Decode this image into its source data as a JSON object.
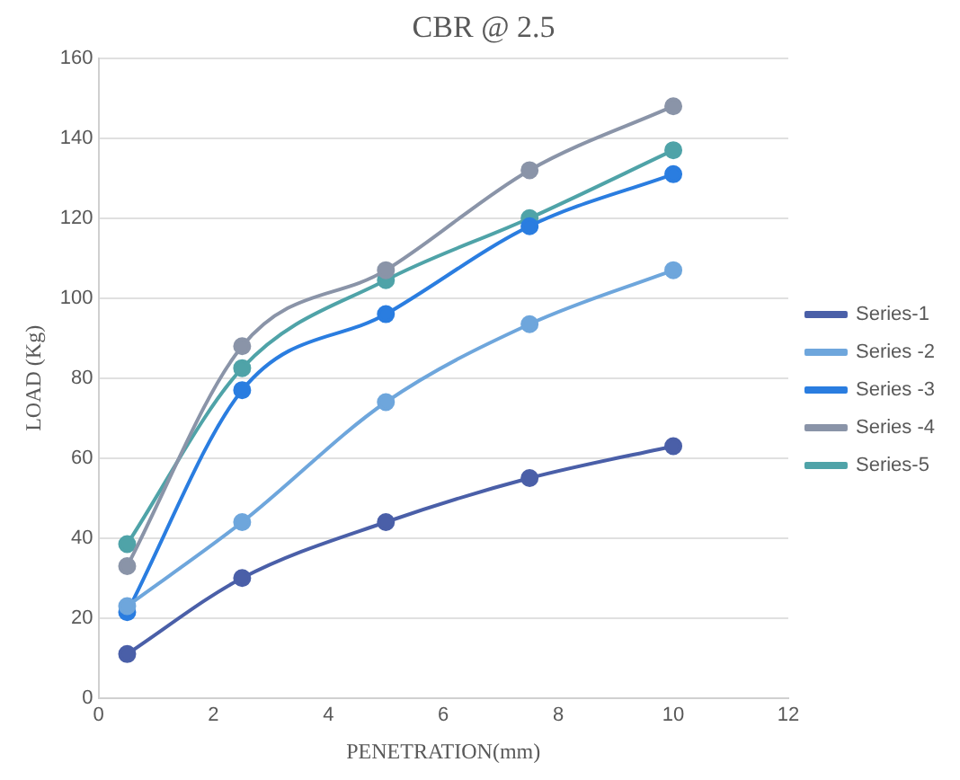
{
  "chart_data": {
    "type": "line",
    "title": "CBR @ 2.5",
    "xlabel": "PENETRATION(mm)",
    "ylabel": "LOAD (Kg)",
    "x": [
      0.5,
      2.5,
      5,
      7.5,
      10
    ],
    "series": [
      {
        "name": "Series-1",
        "color": "#4a5fa8",
        "values": [
          11,
          30,
          44,
          55,
          63
        ]
      },
      {
        "name": "Series -2",
        "color": "#6ea6dc",
        "values": [
          23,
          44,
          74,
          93.5,
          107
        ]
      },
      {
        "name": "Series -3",
        "color": "#2a7de0",
        "values": [
          21.5,
          77,
          96,
          118,
          131
        ]
      },
      {
        "name": "Series -4",
        "color": "#8a94a8",
        "values": [
          33,
          88,
          107,
          132,
          148
        ]
      },
      {
        "name": "Series-5",
        "color": "#4fa3a8",
        "values": [
          38.5,
          82.5,
          104.5,
          120,
          137
        ]
      }
    ],
    "xlim": [
      0,
      12
    ],
    "xticks": [
      0,
      2,
      4,
      6,
      8,
      10,
      12
    ],
    "ylim": [
      0,
      160
    ],
    "yticks": [
      0,
      20,
      40,
      60,
      80,
      100,
      120,
      140,
      160
    ],
    "grid": "y",
    "legend": "right",
    "marker": "circle",
    "line_style": "solid"
  }
}
